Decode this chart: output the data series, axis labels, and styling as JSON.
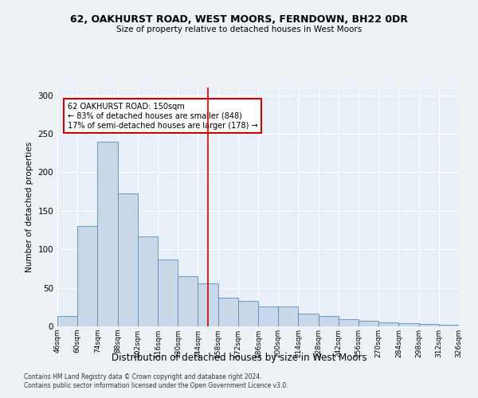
{
  "title1": "62, OAKHURST ROAD, WEST MOORS, FERNDOWN, BH22 0DR",
  "title2": "Size of property relative to detached houses in West Moors",
  "xlabel": "Distribution of detached houses by size in West Moors",
  "ylabel": "Number of detached properties",
  "bin_labels": [
    "46sqm",
    "60sqm",
    "74sqm",
    "88sqm",
    "102sqm",
    "116sqm",
    "130sqm",
    "144sqm",
    "158sqm",
    "172sqm",
    "186sqm",
    "200sqm",
    "214sqm",
    "228sqm",
    "242sqm",
    "256sqm",
    "270sqm",
    "284sqm",
    "298sqm",
    "312sqm",
    "326sqm"
  ],
  "bar_values": [
    13,
    130,
    240,
    173,
    117,
    87,
    65,
    56,
    37,
    33,
    26,
    26,
    17,
    13,
    9,
    7,
    5,
    4,
    3,
    2
  ],
  "bar_color": "#c8d8e8",
  "bar_edge_color": "#5b8db8",
  "vline_color": "#cc0000",
  "annotation_text": "62 OAKHURST ROAD: 150sqm\n← 83% of detached houses are smaller (848)\n17% of semi-detached houses are larger (178) →",
  "annotation_box_color": "#ffffff",
  "annotation_box_edge_color": "#cc0000",
  "ylim": [
    0,
    310
  ],
  "yticks": [
    0,
    50,
    100,
    150,
    200,
    250,
    300
  ],
  "footer1": "Contains HM Land Registry data © Crown copyright and database right 2024.",
  "footer2": "Contains public sector information licensed under the Open Government Licence v3.0.",
  "bg_color": "#eef2f7",
  "plot_bg_color": "#e8eff7"
}
